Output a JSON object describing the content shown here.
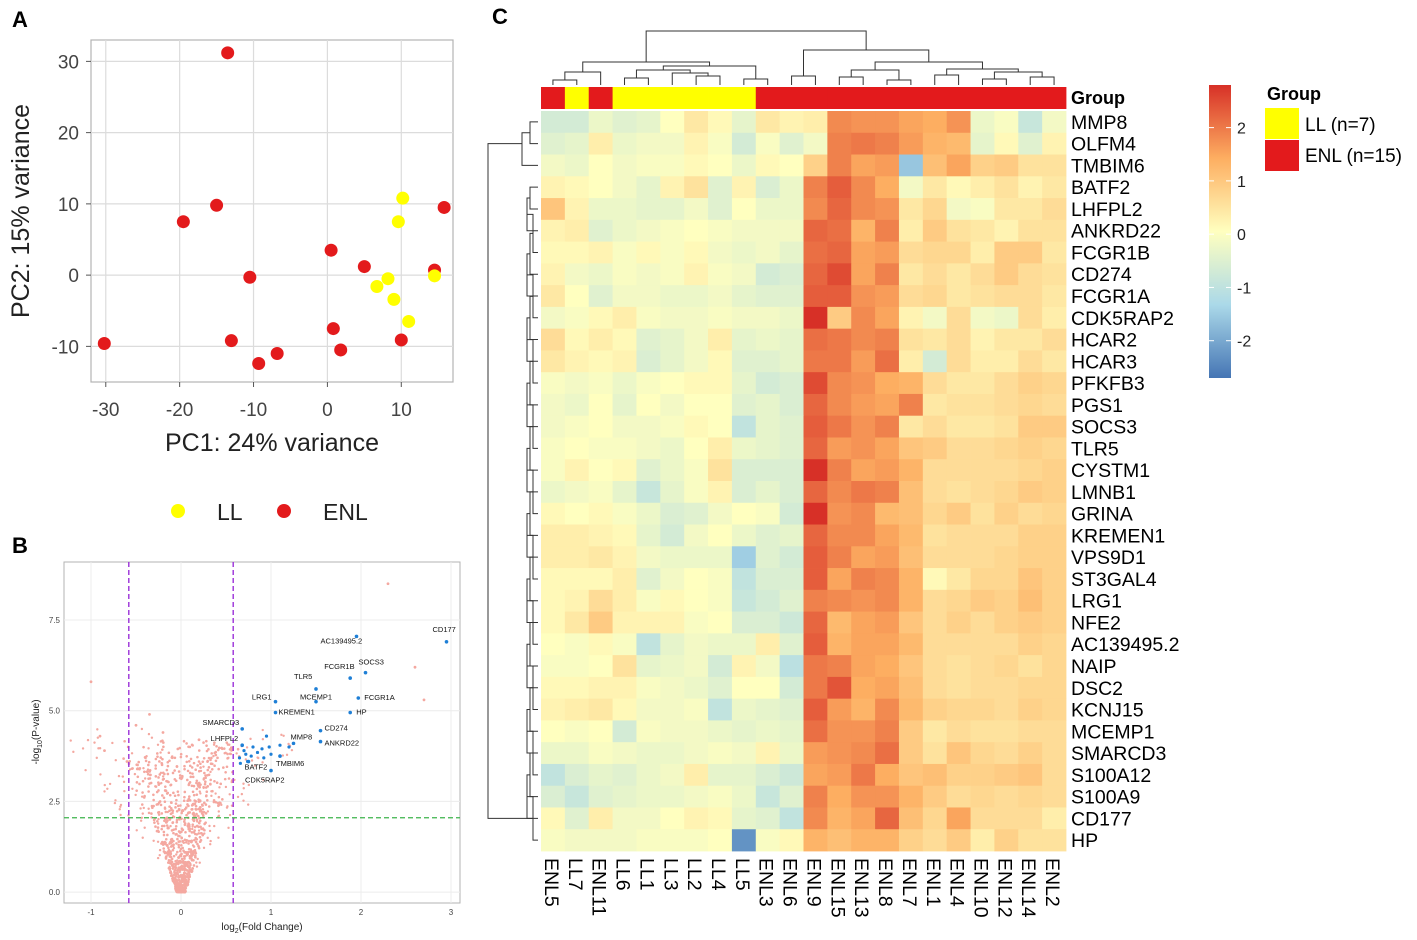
{
  "chart_data": [
    {
      "panel": "A",
      "type": "scatter",
      "xlabel": "PC1: 24% variance",
      "ylabel": "PC2: 15% variance",
      "xlim": [
        -32,
        17
      ],
      "ylim": [
        -15,
        33
      ],
      "xticks": [
        -30,
        -20,
        -10,
        0,
        10
      ],
      "yticks": [
        -10,
        0,
        10,
        20,
        30
      ],
      "legend": {
        "position": "bottom",
        "entries": [
          "LL",
          "ENL"
        ]
      },
      "colors": {
        "LL": "#ffff00",
        "ENL": "#e31a1c"
      },
      "series": [
        {
          "name": "ENL",
          "points": [
            [
              -13.5,
              31.2
            ],
            [
              -15,
              9.8
            ],
            [
              -19.5,
              7.5
            ],
            [
              -10.5,
              -0.3
            ],
            [
              -13,
              -9.2
            ],
            [
              -30.2,
              -9.6
            ],
            [
              -9.3,
              -12.4
            ],
            [
              -6.8,
              -11
            ],
            [
              0.5,
              3.5
            ],
            [
              5,
              1.2
            ],
            [
              0.8,
              -7.5
            ],
            [
              1.8,
              -10.5
            ],
            [
              10,
              -9.1
            ],
            [
              14.5,
              0.7
            ],
            [
              15.8,
              9.5
            ]
          ]
        },
        {
          "name": "LL",
          "points": [
            [
              10.2,
              10.8
            ],
            [
              9.6,
              7.5
            ],
            [
              8.2,
              -0.5
            ],
            [
              6.7,
              -1.6
            ],
            [
              9,
              -3.4
            ],
            [
              11,
              -6.5
            ],
            [
              14.5,
              -0.1
            ]
          ]
        }
      ]
    },
    {
      "panel": "B",
      "type": "scatter",
      "subtype": "volcano",
      "xlabel": "log2(Fold Change)",
      "ylabel": "-log10(P-value)",
      "xlim": [
        -1.3,
        3.1
      ],
      "ylim": [
        -0.3,
        9.1
      ],
      "xticks": [
        -1,
        0,
        1,
        2,
        3
      ],
      "yticks": [
        0.0,
        2.5,
        5.0,
        7.5
      ],
      "fc_thresholds": [
        -0.58,
        0.58
      ],
      "p_threshold": 2.05,
      "colors": {
        "background": "#f4a8a0",
        "significant": "#1e7fd6",
        "fc_line": "#9b30d9",
        "p_line": "#3cb44b"
      },
      "labels": [
        {
          "gene": "CD177",
          "x": 2.95,
          "y": 6.9
        },
        {
          "gene": "AC139495.2",
          "x": 1.95,
          "y": 7.05
        },
        {
          "gene": "SOCS3",
          "x": 2.05,
          "y": 6.05
        },
        {
          "gene": "TLR5",
          "x": 1.5,
          "y": 5.6
        },
        {
          "gene": "FCGR1B",
          "x": 1.88,
          "y": 5.9
        },
        {
          "gene": "LRG1",
          "x": 1.05,
          "y": 5.25
        },
        {
          "gene": "MCEMP1",
          "x": 1.5,
          "y": 5.25
        },
        {
          "gene": "FCGR1A",
          "x": 1.97,
          "y": 5.35
        },
        {
          "gene": "KREMEN1",
          "x": 1.05,
          "y": 4.95
        },
        {
          "gene": "HP",
          "x": 1.88,
          "y": 4.95
        },
        {
          "gene": "SMARCD3",
          "x": 0.68,
          "y": 4.5
        },
        {
          "gene": "CD274",
          "x": 1.55,
          "y": 4.45
        },
        {
          "gene": "LHFPL2",
          "x": 0.68,
          "y": 4.05
        },
        {
          "gene": "MMP8",
          "x": 1.25,
          "y": 4.1
        },
        {
          "gene": "ANKRD22",
          "x": 1.55,
          "y": 4.15
        },
        {
          "gene": "TMBIM6",
          "x": 1.1,
          "y": 3.75
        },
        {
          "gene": "BATF2",
          "x": 0.75,
          "y": 3.6
        },
        {
          "gene": "CDK5RAP2",
          "x": 1.0,
          "y": 3.35
        }
      ]
    },
    {
      "panel": "C",
      "type": "heatmap",
      "annotation_label": "Group",
      "columns": [
        "ENL5",
        "LL7",
        "ENL11",
        "LL6",
        "LL1",
        "LL3",
        "LL2",
        "LL4",
        "LL5",
        "ENL3",
        "ENL6",
        "ENL9",
        "ENL15",
        "ENL13",
        "ENL8",
        "ENL7",
        "ENL1",
        "ENL4",
        "ENL10",
        "ENL12",
        "ENL14",
        "ENL2"
      ],
      "rows": [
        "MMP8",
        "OLFM4",
        "TMBIM6",
        "BATF2",
        "LHFPL2",
        "ANKRD22",
        "FCGR1B",
        "CD274",
        "FCGR1A",
        "CDK5RAP2",
        "HCAR2",
        "HCAR3",
        "PFKFB3",
        "PGS1",
        "SOCS3",
        "TLR5",
        "CYSTM1",
        "LMNB1",
        "GRINA",
        "KREMEN1",
        "VPS9D1",
        "ST3GAL4",
        "LRG1",
        "NFE2",
        "AC139495.2",
        "NAIP",
        "DSC2",
        "KCNJ15",
        "MCEMP1",
        "SMARCD3",
        "S100A12",
        "S100A9",
        "CD177",
        "HP"
      ],
      "legend": {
        "title": "Group",
        "entries": [
          {
            "label": "LL (n=7)",
            "color": "#ffff00"
          },
          {
            "label": "ENL (n=15)",
            "color": "#e31a1c"
          }
        ]
      },
      "colorbar": {
        "ticks": [
          2,
          1,
          0,
          -1,
          -2
        ],
        "range": [
          -2.7,
          2.8
        ]
      },
      "values": [
        [
          -0.7,
          -0.7,
          -0.3,
          -0.5,
          -0.4,
          0.0,
          0.4,
          0.1,
          -0.4,
          0.4,
          0.2,
          0.3,
          1.8,
          1.7,
          1.7,
          1.5,
          1.4,
          1.7,
          -0.3,
          -0.1,
          -0.9,
          -0.2
        ],
        [
          -0.5,
          -0.4,
          0.3,
          -0.3,
          -0.2,
          -0.2,
          0.2,
          -0.1,
          -0.7,
          -0.1,
          -0.5,
          -0.2,
          1.9,
          2.0,
          1.9,
          1.6,
          1.3,
          1.2,
          -0.4,
          0.1,
          -0.5,
          0.2
        ],
        [
          -0.2,
          -0.3,
          0.0,
          -0.2,
          -0.1,
          -0.1,
          0.1,
          0.0,
          -0.3,
          0.1,
          0.0,
          0.8,
          1.9,
          1.5,
          1.6,
          -1.6,
          1.1,
          1.5,
          0.8,
          0.9,
          0.5,
          0.5
        ],
        [
          0.2,
          0.1,
          0.0,
          -0.2,
          -0.4,
          0.2,
          0.5,
          -0.5,
          0.2,
          -0.6,
          -0.3,
          1.9,
          2.3,
          1.8,
          1.4,
          -0.2,
          0.4,
          0.1,
          0.3,
          0.5,
          0.2,
          0.4
        ],
        [
          1.0,
          0.2,
          -0.3,
          -0.3,
          -0.4,
          -0.4,
          -0.2,
          -0.5,
          0.0,
          -0.3,
          -0.3,
          1.8,
          2.2,
          1.8,
          1.7,
          0.4,
          0.7,
          -0.2,
          -0.1,
          0.4,
          0.4,
          0.6
        ],
        [
          0.2,
          0.3,
          -0.5,
          -0.3,
          -0.2,
          -0.1,
          0.0,
          -0.1,
          -0.2,
          -0.2,
          -0.2,
          2.2,
          2.1,
          1.3,
          1.9,
          0.3,
          0.9,
          0.5,
          0.4,
          0.2,
          0.5,
          0.5
        ],
        [
          0.1,
          0.1,
          0.2,
          -0.1,
          0.1,
          -0.1,
          0.1,
          -0.2,
          -0.3,
          -0.2,
          -0.4,
          2.1,
          2.2,
          1.5,
          1.6,
          0.6,
          0.7,
          0.7,
          0.3,
          0.9,
          0.9,
          0.4
        ],
        [
          0.2,
          -0.2,
          -0.3,
          -0.1,
          -0.2,
          -0.1,
          0.2,
          -0.1,
          -0.2,
          -0.7,
          -0.6,
          2.2,
          2.5,
          1.5,
          1.9,
          0.4,
          0.6,
          0.4,
          0.6,
          0.9,
          0.6,
          0.5
        ],
        [
          0.4,
          0.0,
          -0.5,
          -0.2,
          -0.2,
          -0.3,
          -0.3,
          -0.2,
          -0.4,
          -0.5,
          -0.5,
          2.3,
          2.3,
          1.7,
          1.6,
          0.6,
          0.7,
          0.4,
          0.5,
          0.6,
          0.6,
          0.4
        ],
        [
          -0.2,
          -0.1,
          0.1,
          0.3,
          -0.1,
          -0.2,
          -0.2,
          -0.1,
          -0.2,
          -0.2,
          -0.3,
          2.8,
          0.9,
          1.8,
          1.5,
          0.2,
          -0.2,
          0.6,
          -0.2,
          -0.3,
          0.6,
          0.3
        ],
        [
          0.6,
          0.1,
          0.3,
          0.1,
          -0.5,
          -0.4,
          -0.2,
          0.3,
          -0.4,
          -0.3,
          -0.4,
          2.1,
          2.0,
          1.8,
          1.9,
          0.5,
          0.4,
          0.6,
          0.2,
          0.4,
          0.4,
          0.6
        ],
        [
          0.4,
          0.2,
          0.1,
          0.2,
          -0.6,
          -0.4,
          -0.2,
          0.1,
          -0.5,
          -0.5,
          -0.4,
          2.0,
          2.0,
          1.6,
          2.1,
          0.3,
          -0.7,
          0.6,
          0.3,
          0.3,
          0.6,
          0.4
        ],
        [
          -0.1,
          -0.2,
          -0.1,
          -0.3,
          -0.1,
          0.0,
          0.1,
          0.1,
          -0.4,
          -0.7,
          -0.6,
          2.5,
          1.8,
          1.7,
          1.4,
          1.3,
          0.6,
          0.4,
          0.4,
          0.6,
          0.8,
          0.7
        ],
        [
          -0.2,
          -0.3,
          0.0,
          -0.4,
          0.0,
          -0.2,
          0.0,
          0.0,
          -0.5,
          -0.4,
          -0.6,
          2.2,
          1.8,
          1.6,
          1.5,
          1.9,
          0.4,
          0.5,
          0.5,
          0.6,
          0.7,
          0.6
        ],
        [
          -0.2,
          -0.1,
          0.0,
          -0.2,
          -0.2,
          -0.1,
          0.1,
          0.0,
          -1.0,
          -0.4,
          -0.5,
          2.3,
          2.0,
          1.7,
          1.9,
          0.4,
          0.6,
          0.4,
          0.4,
          0.5,
          0.9,
          0.9
        ],
        [
          -0.1,
          0.0,
          -0.1,
          -0.1,
          -0.2,
          -0.3,
          0.0,
          0.3,
          -0.3,
          -0.4,
          -0.5,
          2.2,
          1.6,
          1.7,
          1.5,
          1.0,
          0.9,
          0.6,
          0.6,
          0.7,
          0.8,
          0.7
        ],
        [
          -0.1,
          0.2,
          0.0,
          0.1,
          -0.5,
          -0.3,
          -0.1,
          0.5,
          -0.6,
          -0.6,
          -0.6,
          2.8,
          1.9,
          1.5,
          1.6,
          1.3,
          0.6,
          0.6,
          0.6,
          0.6,
          0.7,
          0.8
        ],
        [
          -0.3,
          -0.2,
          -0.1,
          -0.4,
          -0.9,
          -0.4,
          -0.1,
          0.2,
          -0.6,
          -0.4,
          -0.6,
          2.2,
          1.8,
          2.0,
          1.9,
          1.1,
          0.6,
          0.5,
          0.6,
          0.7,
          0.9,
          0.8
        ],
        [
          0.1,
          0.0,
          0.1,
          -0.1,
          -0.3,
          -0.6,
          -0.5,
          -0.2,
          0.0,
          -0.1,
          -0.7,
          2.9,
          1.7,
          1.8,
          1.2,
          1.1,
          0.7,
          0.9,
          0.5,
          0.8,
          0.6,
          0.7
        ],
        [
          0.3,
          0.3,
          0.2,
          0.1,
          -0.4,
          -0.7,
          -0.2,
          0.0,
          -0.3,
          -0.5,
          -0.4,
          2.2,
          1.8,
          1.8,
          1.5,
          1.2,
          0.5,
          0.6,
          0.6,
          0.6,
          0.8,
          0.8
        ],
        [
          0.3,
          0.3,
          0.4,
          0.2,
          -0.2,
          -0.3,
          -0.3,
          -0.3,
          -1.5,
          -0.5,
          -0.7,
          2.3,
          1.9,
          1.5,
          1.6,
          1.1,
          0.6,
          0.6,
          0.6,
          0.7,
          0.8,
          0.8
        ],
        [
          0.1,
          0.1,
          0.1,
          0.3,
          -0.5,
          -0.2,
          0.0,
          -0.1,
          -1.0,
          -0.6,
          -0.6,
          2.3,
          1.5,
          1.9,
          1.8,
          1.3,
          0.1,
          0.4,
          0.7,
          0.7,
          1.0,
          0.8
        ],
        [
          0.1,
          0.2,
          0.6,
          0.3,
          -0.1,
          0.1,
          0.0,
          -0.1,
          -0.9,
          -0.7,
          -0.5,
          1.9,
          1.8,
          1.7,
          1.8,
          1.3,
          0.6,
          0.7,
          0.9,
          0.8,
          1.1,
          0.8
        ],
        [
          0.1,
          0.4,
          0.9,
          0.2,
          0.2,
          0.2,
          -0.1,
          0.0,
          -0.6,
          -0.6,
          -0.8,
          2.2,
          1.2,
          1.5,
          1.6,
          1.0,
          0.6,
          0.8,
          0.6,
          0.8,
          0.9,
          0.8
        ],
        [
          0.0,
          -0.1,
          0.1,
          -0.1,
          -1.0,
          -0.4,
          -0.2,
          -0.3,
          -0.3,
          0.3,
          -0.5,
          2.3,
          1.3,
          1.5,
          1.5,
          1.2,
          0.6,
          0.6,
          0.6,
          0.6,
          0.8,
          0.7
        ],
        [
          -0.1,
          -0.1,
          0.0,
          0.5,
          -0.4,
          -0.3,
          -0.2,
          -0.7,
          0.2,
          -0.2,
          -1.1,
          2.0,
          1.9,
          1.5,
          1.4,
          1.0,
          0.6,
          0.5,
          0.6,
          0.7,
          0.5,
          0.7
        ],
        [
          0.1,
          0.1,
          0.2,
          0.2,
          -0.1,
          -0.2,
          -0.3,
          -0.5,
          0.0,
          0.0,
          -0.7,
          2.0,
          2.4,
          1.4,
          1.5,
          1.1,
          0.6,
          0.5,
          0.6,
          0.6,
          0.7,
          0.7
        ],
        [
          0.2,
          0.3,
          0.4,
          0.1,
          -0.2,
          -0.2,
          -0.1,
          -1.0,
          -0.3,
          -0.4,
          -0.5,
          2.3,
          1.6,
          1.3,
          1.8,
          1.2,
          0.8,
          0.7,
          0.7,
          0.6,
          0.8,
          0.7
        ],
        [
          0.0,
          -0.1,
          0.0,
          -0.7,
          -0.1,
          -0.2,
          -0.2,
          -0.3,
          -0.4,
          -0.3,
          -0.4,
          2.1,
          1.7,
          1.7,
          1.9,
          0.9,
          0.4,
          0.6,
          0.5,
          0.5,
          0.6,
          0.6
        ],
        [
          -0.3,
          -0.3,
          -0.1,
          -0.2,
          -0.3,
          -0.3,
          -0.2,
          -0.1,
          -0.2,
          0.2,
          -0.3,
          1.6,
          1.7,
          1.8,
          2.1,
          0.9,
          0.5,
          1.0,
          0.7,
          0.6,
          0.8,
          0.6
        ],
        [
          -1.0,
          -0.6,
          -0.4,
          -0.5,
          -0.3,
          -0.2,
          0.3,
          -0.4,
          -0.4,
          -0.6,
          -0.8,
          1.5,
          1.6,
          2.0,
          1.4,
          1.0,
          1.1,
          0.8,
          0.8,
          0.9,
          1.0,
          0.6
        ],
        [
          -0.6,
          -0.9,
          -0.5,
          -0.4,
          -0.3,
          -0.3,
          -0.2,
          -0.1,
          -0.3,
          -0.9,
          -0.5,
          1.9,
          1.4,
          1.7,
          1.7,
          1.3,
          0.9,
          0.6,
          0.7,
          0.6,
          0.7,
          0.6
        ],
        [
          0.1,
          -0.5,
          0.3,
          -0.2,
          -0.2,
          0.0,
          0.2,
          0.1,
          -0.4,
          -0.5,
          -1.0,
          1.8,
          1.3,
          1.5,
          2.2,
          1.1,
          0.7,
          1.5,
          0.6,
          0.6,
          0.6,
          0.3
        ],
        [
          -0.1,
          -0.2,
          -0.2,
          -0.2,
          -0.1,
          -0.1,
          -0.1,
          0.0,
          -2.3,
          -0.1,
          0.1,
          1.3,
          1.1,
          1.3,
          1.3,
          0.8,
          0.6,
          0.9,
          0.3,
          0.8,
          0.5,
          0.5
        ]
      ]
    }
  ],
  "panel_labels": [
    "A",
    "B",
    "C"
  ]
}
